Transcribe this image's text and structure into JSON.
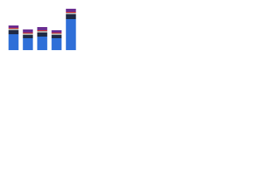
{
  "chart_data": {
    "type": "stacked-bar",
    "categories": [
      null,
      null,
      null,
      null,
      null
    ],
    "series": [
      {
        "color": "#2f6fd8",
        "values": [
          20,
          15,
          17,
          15,
          39
        ]
      },
      {
        "color": "#1f2a44",
        "values": [
          5,
          4,
          5,
          4,
          6
        ]
      },
      {
        "color": "#a9a9a9",
        "values": [
          2,
          2,
          2,
          2,
          2
        ]
      },
      {
        "color": "#d62f2f",
        "values": [
          1,
          1,
          1,
          1,
          1
        ]
      },
      {
        "color": "#6a2d91",
        "values": [
          3,
          4,
          4,
          3,
          4
        ]
      }
    ],
    "ylim": [
      0,
      53
    ]
  }
}
